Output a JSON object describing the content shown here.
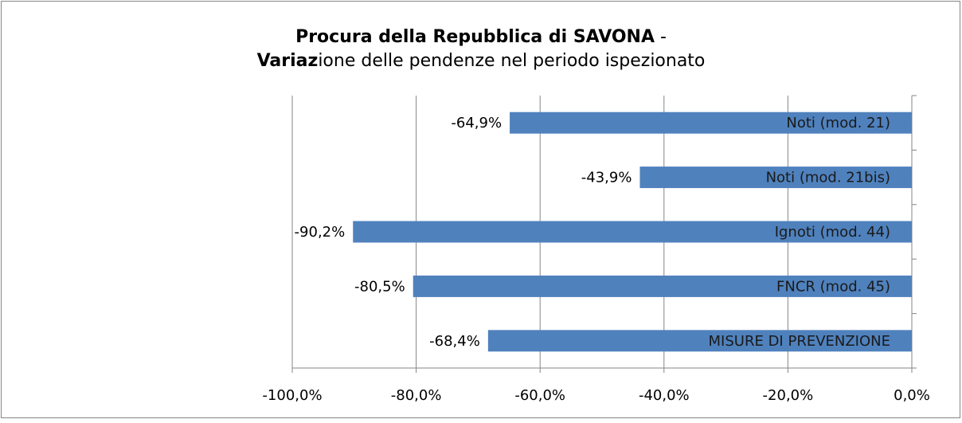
{
  "chart_data": {
    "type": "bar",
    "orientation": "horizontal",
    "title": [
      [
        {
          "text": "Procura della Repubblica di SAVONA",
          "bold": true
        },
        {
          "text": " -",
          "bold": false
        }
      ],
      [
        {
          "text": "Variaz",
          "bold": true
        },
        {
          "text": "ione delle pendenze nel periodo ispezionato",
          "bold": false
        }
      ]
    ],
    "categories": [
      "Noti (mod. 21)",
      "Noti (mod. 21bis)",
      "Ignoti (mod. 44)",
      "FNCR (mod. 45)",
      "MISURE DI PREVENZIONE"
    ],
    "values": [
      -64.9,
      -43.9,
      -90.2,
      -80.5,
      -68.4
    ],
    "value_labels": [
      "-64,9%",
      "-43,9%",
      "-90,2%",
      "-80,5%",
      "-68,4%"
    ],
    "color": "#4f81bd",
    "xlim": [
      -100,
      0
    ],
    "xticks": [
      {
        "value": -100,
        "label": "-100,0%"
      },
      {
        "value": -80,
        "label": "-80,0%"
      },
      {
        "value": -60,
        "label": "-60,0%"
      },
      {
        "value": -40,
        "label": "-40,0%"
      },
      {
        "value": -20,
        "label": "-20,0%"
      },
      {
        "value": 0,
        "label": "0,0%"
      }
    ],
    "grid": true
  }
}
